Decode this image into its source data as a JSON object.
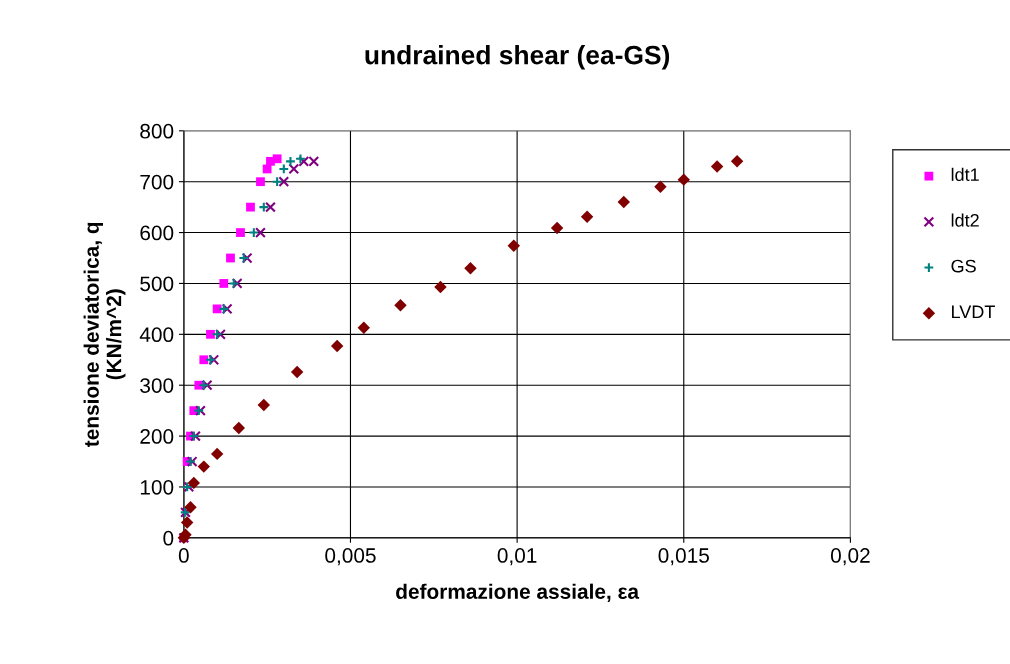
{
  "chart_data": {
    "type": "scatter",
    "title": "undrained shear (ea-GS)",
    "xlabel": "deformazione assiale, εa",
    "ylabel": "tensione deviatorica, q\n(KN/m^2)",
    "xlim": [
      0,
      0.02
    ],
    "xticks": [
      0,
      {
        "value": 0.005,
        "label": "0,005"
      },
      {
        "value": 0.01,
        "label": "0,01"
      },
      {
        "value": 0.015,
        "label": "0,015"
      },
      {
        "value": 0.02,
        "label": "0,02"
      }
    ],
    "ylim": [
      0,
      800
    ],
    "yticks": [
      0,
      100,
      200,
      300,
      400,
      500,
      600,
      700,
      800
    ],
    "grid": true,
    "legend": "right",
    "series": [
      {
        "name": "ldt1",
        "color": "#ff00ff",
        "marker": "square",
        "x": [
          0,
          0.0001,
          0.0002,
          0.0003,
          0.00045,
          0.0006,
          0.0008,
          0.001,
          0.0012,
          0.0014,
          0.0017,
          0.002,
          0.0023,
          0.0025,
          0.0026,
          0.0028
        ],
        "values": [
          0,
          150,
          200,
          250,
          300,
          350,
          400,
          450,
          500,
          550,
          600,
          650,
          700,
          725,
          740,
          745
        ]
      },
      {
        "name": "ldt2",
        "color": "#800080",
        "marker": "cross",
        "x": [
          0,
          5e-05,
          0.00015,
          0.00025,
          0.00035,
          0.0005,
          0.0007,
          0.0009,
          0.0011,
          0.0013,
          0.0016,
          0.0019,
          0.0023,
          0.0026,
          0.003,
          0.0033,
          0.0036,
          0.0039
        ],
        "values": [
          0,
          50,
          100,
          150,
          200,
          250,
          300,
          350,
          400,
          450,
          500,
          550,
          600,
          650,
          700,
          725,
          740,
          740
        ]
      },
      {
        "name": "GS",
        "color": "#008080",
        "marker": "plus",
        "x": [
          4e-05,
          0.0001,
          0.0002,
          0.0003,
          0.00045,
          0.0006,
          0.0008,
          0.001,
          0.0012,
          0.0015,
          0.0018,
          0.0021,
          0.0024,
          0.0028,
          0.003,
          0.0032,
          0.0035
        ],
        "values": [
          50,
          100,
          150,
          200,
          250,
          300,
          350,
          400,
          450,
          500,
          550,
          600,
          650,
          700,
          725,
          740,
          745
        ]
      },
      {
        "name": "LVDT",
        "color": "#800000",
        "marker": "diamond",
        "x": [
          0,
          5e-05,
          0.0001,
          0.0002,
          0.0003,
          0.0006,
          0.001,
          0.00165,
          0.0024,
          0.0034,
          0.0046,
          0.0054,
          0.0065,
          0.0077,
          0.0086,
          0.0099,
          0.0112,
          0.0121,
          0.0132,
          0.0143,
          0.015,
          0.016,
          0.0166
        ],
        "values": [
          0,
          6,
          30,
          60,
          108,
          140,
          165,
          216,
          261,
          326,
          377,
          413,
          457,
          493,
          530,
          574,
          609,
          631,
          660,
          690,
          704,
          730,
          740
        ]
      }
    ]
  }
}
